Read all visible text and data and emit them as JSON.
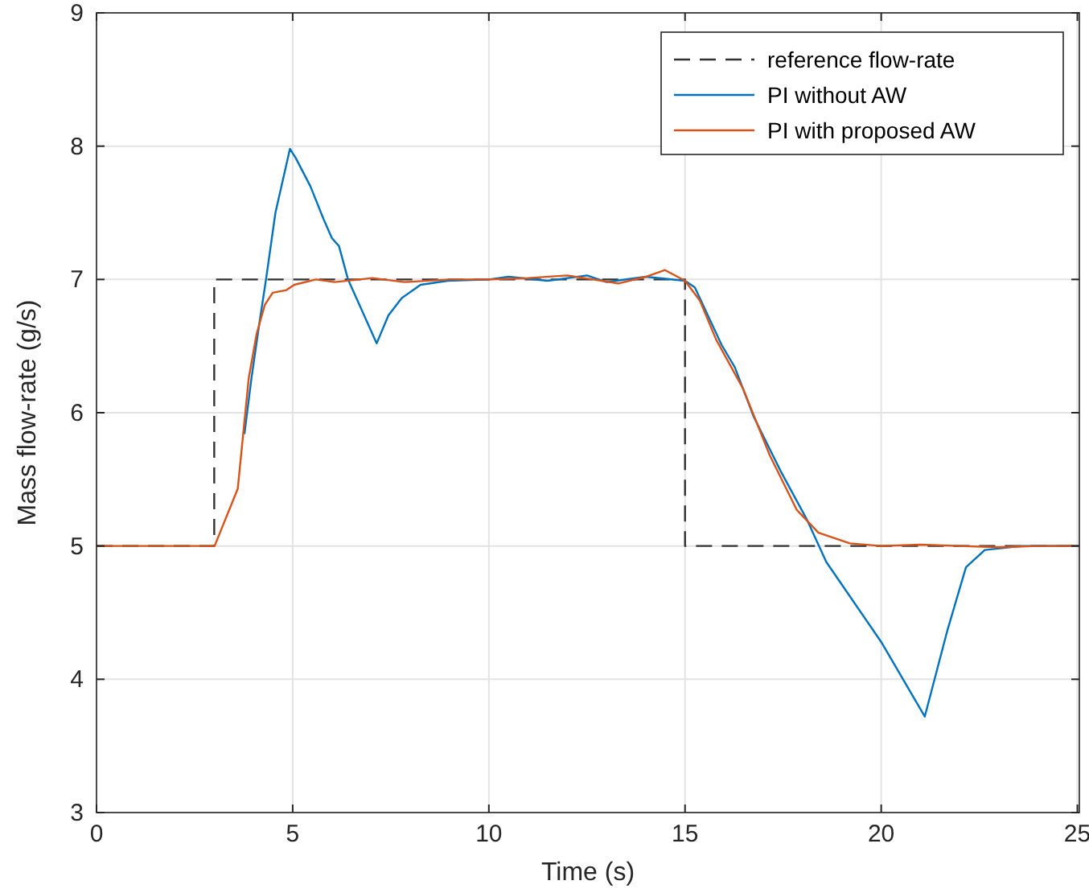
{
  "chart_data": {
    "type": "line",
    "xlabel": "Time (s)",
    "ylabel": "Mass flow-rate (g/s)",
    "xlim": [
      0,
      25.05
    ],
    "ylim": [
      3,
      9
    ],
    "xticks": [
      0,
      5,
      10,
      15,
      20,
      25
    ],
    "yticks": [
      3,
      4,
      5,
      6,
      7,
      8,
      9
    ],
    "grid": true,
    "legend": "top right",
    "series": [
      {
        "name": "reference flow-rate",
        "color": "#333333",
        "line_style": "dashed",
        "x": [
          0,
          3,
          3,
          15,
          15,
          25.05
        ],
        "values": [
          5,
          5,
          7,
          7,
          5,
          5
        ]
      },
      {
        "name": "PI without AW",
        "color": "#0072bd",
        "x": [
          3.77,
          3.95,
          4.15,
          4.32,
          4.56,
          4.93,
          5.08,
          5.45,
          5.79,
          6.0,
          6.18,
          6.41,
          7.14,
          7.44,
          7.78,
          8.26,
          8.95,
          10,
          10.5,
          11.5,
          12.5,
          13,
          14,
          15,
          15.25,
          15.93,
          16.27,
          16.75,
          17.44,
          18.12,
          18.6,
          20,
          21.11,
          21.68,
          22.16,
          22.64,
          23.6,
          25.05
        ],
        "values": [
          5.84,
          6.26,
          6.67,
          7.0,
          7.5,
          7.98,
          7.91,
          7.7,
          7.45,
          7.31,
          7.25,
          7.0,
          6.52,
          6.73,
          6.86,
          6.96,
          6.99,
          7.0,
          7.02,
          6.99,
          7.03,
          6.98,
          7.02,
          6.99,
          6.94,
          6.51,
          6.34,
          5.97,
          5.56,
          5.19,
          4.88,
          4.28,
          3.72,
          4.36,
          4.84,
          4.97,
          5.0,
          5.0
        ]
      },
      {
        "name": "PI with proposed AW",
        "color": "#d95319",
        "x": [
          0,
          1,
          2,
          3.01,
          3.6,
          3.88,
          4.08,
          4.29,
          4.49,
          4.84,
          5.04,
          5.59,
          6.07,
          7.03,
          7.85,
          9,
          10,
          11,
          12,
          13.3,
          14,
          14.49,
          15,
          15.38,
          15.79,
          16.48,
          17.16,
          17.85,
          18.4,
          19.2,
          20,
          21,
          22,
          23,
          24,
          25.05
        ],
        "values": [
          5,
          5,
          5,
          5,
          5.43,
          6.26,
          6.59,
          6.81,
          6.9,
          6.92,
          6.96,
          7.0,
          6.98,
          7.01,
          6.98,
          7.0,
          7.0,
          7.01,
          7.03,
          6.97,
          7.02,
          7.07,
          6.99,
          6.84,
          6.55,
          6.18,
          5.68,
          5.27,
          5.1,
          5.02,
          5.0,
          5.01,
          5.0,
          4.99,
          5.0,
          5.0
        ]
      }
    ]
  }
}
